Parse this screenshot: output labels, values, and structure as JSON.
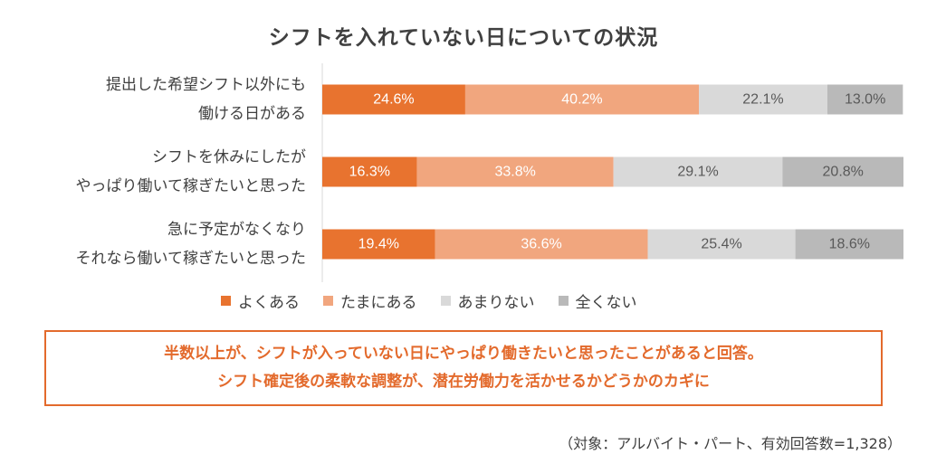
{
  "colors": {
    "series": [
      "#e8732f",
      "#f1a67e",
      "#d9d9d9",
      "#b9b9b9"
    ],
    "series_text": [
      "#ffffff",
      "#ffffff",
      "#595959",
      "#595959"
    ],
    "accent": "#e36a2c"
  },
  "chart_data": {
    "type": "bar",
    "orientation": "horizontal",
    "stacked": true,
    "title": "シフトを入れていない日についての状況",
    "categories": [
      [
        "提出した希望シフト以外にも",
        "働ける日がある"
      ],
      [
        "シフトを休みにしたが",
        "やっぱり働いて稼ぎたいと思った"
      ],
      [
        "急に予定がなくなり",
        "それなら働いて稼ぎたいと思った"
      ]
    ],
    "series": [
      {
        "name": "よくある",
        "values": [
          24.6,
          16.3,
          19.4
        ]
      },
      {
        "name": "たまにある",
        "values": [
          40.2,
          33.8,
          36.6
        ]
      },
      {
        "name": "あまりない",
        "values": [
          22.1,
          29.1,
          25.4
        ]
      },
      {
        "name": "全くない",
        "values": [
          13.0,
          20.8,
          18.6
        ]
      }
    ],
    "value_suffix": "%",
    "xlim": [
      0,
      100
    ],
    "legend_position": "bottom",
    "grid": false
  },
  "summary": {
    "line1": "半数以上が、シフトが入っていない日にやっぱり働きたいと思ったことがあると回答。",
    "line2": "シフト確定後の柔軟な調整が、潜在労働力を活かせるかどうかのカギに"
  },
  "footnote": "（対象：アルバイト・パート、有効回答数=1,328）"
}
